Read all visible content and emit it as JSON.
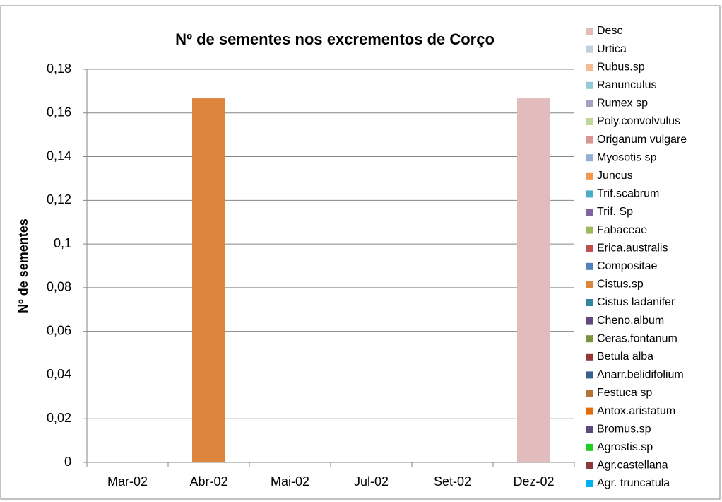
{
  "chart_data": {
    "type": "stacked_bar",
    "title": "Nº de sementes nos excrementos de Corço",
    "y_label": "Nº de sementes",
    "categories": [
      "Mar-02",
      "Abr-02",
      "Mai-02",
      "Jul-02",
      "Set-02",
      "Dez-02"
    ],
    "ylim": [
      0,
      0.18
    ],
    "yticks": [
      0,
      {
        "value": 0.02,
        "label": "0,02"
      },
      {
        "value": 0.04,
        "label": "0,04"
      },
      {
        "value": 0.06,
        "label": "0,06"
      },
      {
        "value": 0.08,
        "label": "0,08"
      },
      {
        "value": 0.1,
        "label": "0,1"
      },
      {
        "value": 0.12,
        "label": "0,12"
      },
      {
        "value": 0.14,
        "label": "0,14"
      },
      {
        "value": 0.16,
        "label": "0,16"
      },
      {
        "value": 0.18,
        "label": "0,18"
      }
    ],
    "grid": true,
    "legend": "right",
    "series": [
      {
        "name": "Agr. truncatula",
        "color": "#00b0f0",
        "values": [
          0,
          0,
          0,
          0,
          0,
          0
        ]
      },
      {
        "name": "Agr.castellana",
        "color": "#8b3a3a",
        "values": [
          0,
          0,
          0,
          0,
          0,
          0
        ]
      },
      {
        "name": "Agrostis.sp",
        "color": "#22cc22",
        "values": [
          0,
          0,
          0,
          0,
          0,
          0
        ]
      },
      {
        "name": "Bromus.sp",
        "color": "#5f497a",
        "values": [
          0,
          0,
          0,
          0,
          0,
          0
        ]
      },
      {
        "name": "Antox.aristatum",
        "color": "#e46c0a",
        "values": [
          0,
          0,
          0,
          0,
          0,
          0
        ]
      },
      {
        "name": "Festuca sp",
        "color": "#b7743a",
        "values": [
          0,
          0,
          0,
          0,
          0,
          0
        ]
      },
      {
        "name": "Anarr.belidifolium",
        "color": "#366092",
        "values": [
          0,
          0,
          0,
          0,
          0,
          0
        ]
      },
      {
        "name": "Betula alba",
        "color": "#953735",
        "values": [
          0,
          0,
          0,
          0,
          0,
          0
        ]
      },
      {
        "name": "Ceras.fontanum",
        "color": "#77933c",
        "values": [
          0,
          0,
          0,
          0,
          0,
          0
        ]
      },
      {
        "name": "Cheno.album",
        "color": "#604a7b",
        "values": [
          0,
          0,
          0,
          0,
          0,
          0
        ]
      },
      {
        "name": "Cistus ladanifer",
        "color": "#31859c",
        "values": [
          0,
          0,
          0,
          0,
          0,
          0
        ]
      },
      {
        "name": "Cistus.sp",
        "color": "#dd853d",
        "values": [
          0,
          0.1667,
          0,
          0,
          0,
          0
        ]
      },
      {
        "name": "Compositae",
        "color": "#4f81bd",
        "values": [
          0,
          0,
          0,
          0,
          0,
          0
        ]
      },
      {
        "name": "Erica.australis",
        "color": "#c0504d",
        "values": [
          0,
          0,
          0,
          0,
          0,
          0
        ]
      },
      {
        "name": "Fabaceae",
        "color": "#9bbb59",
        "values": [
          0,
          0,
          0,
          0,
          0,
          0
        ]
      },
      {
        "name": "Trif. Sp",
        "color": "#8064a2",
        "values": [
          0,
          0,
          0,
          0,
          0,
          0
        ]
      },
      {
        "name": "Trif.scabrum",
        "color": "#4bacc6",
        "values": [
          0,
          0,
          0,
          0,
          0,
          0
        ]
      },
      {
        "name": "Juncus",
        "color": "#f79646",
        "values": [
          0,
          0,
          0,
          0,
          0,
          0
        ]
      },
      {
        "name": "Myosotis sp",
        "color": "#95add0",
        "values": [
          0,
          0,
          0,
          0,
          0,
          0
        ]
      },
      {
        "name": "Origanum vulgare",
        "color": "#d99594",
        "values": [
          0,
          0,
          0,
          0,
          0,
          0
        ]
      },
      {
        "name": "Poly.convolvulus",
        "color": "#c0d79b",
        "values": [
          0,
          0,
          0,
          0,
          0,
          0
        ]
      },
      {
        "name": "Rumex sp",
        "color": "#ab9fc3",
        "values": [
          0,
          0,
          0,
          0,
          0,
          0
        ]
      },
      {
        "name": "Ranunculus",
        "color": "#92c9d4",
        "values": [
          0,
          0,
          0,
          0,
          0,
          0
        ]
      },
      {
        "name": "Rubus.sp",
        "color": "#f7b98e",
        "values": [
          0,
          0,
          0,
          0,
          0,
          0
        ]
      },
      {
        "name": "Urtica",
        "color": "#c3cfe0",
        "values": [
          0,
          0,
          0,
          0,
          0,
          0
        ]
      },
      {
        "name": "Desc",
        "color": "#e2bcbc",
        "values": [
          0,
          0,
          0,
          0,
          0,
          0.1667
        ]
      }
    ]
  }
}
